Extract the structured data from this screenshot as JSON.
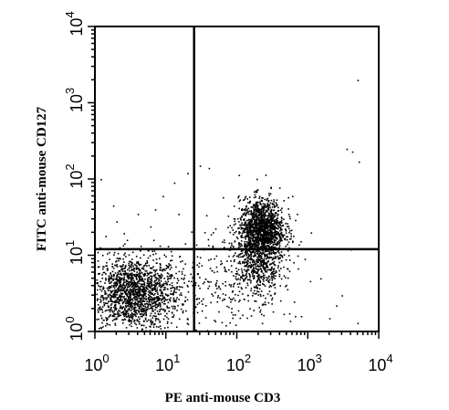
{
  "chart_data": {
    "type": "scatter",
    "xlabel": "PE anti-mouse CD3",
    "ylabel": "FITC anti-mouse CD127",
    "x_scale": "log",
    "y_scale": "log",
    "xlim": [
      1,
      10000
    ],
    "ylim": [
      1,
      10000
    ],
    "x_ticks": [
      {
        "value": 1,
        "base": "10",
        "exp": "0"
      },
      {
        "value": 10,
        "base": "10",
        "exp": "1"
      },
      {
        "value": 100,
        "base": "10",
        "exp": "2"
      },
      {
        "value": 1000,
        "base": "10",
        "exp": "3"
      },
      {
        "value": 10000,
        "base": "10",
        "exp": "4"
      }
    ],
    "y_ticks": [
      {
        "value": 1,
        "base": "10",
        "exp": "0"
      },
      {
        "value": 10,
        "base": "10",
        "exp": "1"
      },
      {
        "value": 100,
        "base": "10",
        "exp": "2"
      },
      {
        "value": 1000,
        "base": "10",
        "exp": "3"
      },
      {
        "value": 10000,
        "base": "10",
        "exp": "4"
      }
    ],
    "quadrant_gates": {
      "x": 25,
      "y": 12
    },
    "grid": false,
    "point_color": "#000000",
    "populations": [
      {
        "center_x": 3.5,
        "center_y": 3.2,
        "spread_x_decades": 0.32,
        "spread_y_decades": 0.24,
        "approx_events": 1700
      },
      {
        "center_x": 220,
        "center_y": 22,
        "spread_x_decades": 0.16,
        "spread_y_decades": 0.2,
        "approx_events": 1500
      },
      {
        "center_x": 200,
        "center_y": 7,
        "spread_x_decades": 0.17,
        "spread_y_decades": 0.2,
        "approx_events": 450
      },
      {
        "center_x": 80,
        "center_y": 5,
        "spread_x_decades": 0.4,
        "spread_y_decades": 0.35,
        "approx_events": 250
      }
    ],
    "sparse_points": [
      {
        "x": 3500,
        "y": 250
      },
      {
        "x": 4200,
        "y": 230
      },
      {
        "x": 5000,
        "y": 2000
      },
      {
        "x": 5200,
        "y": 170
      },
      {
        "x": 4000,
        "y": 12
      },
      {
        "x": 2000,
        "y": 1.5
      },
      {
        "x": 5000,
        "y": 1.3
      },
      {
        "x": 1.2,
        "y": 100
      },
      {
        "x": 1.5,
        "y": 2.2
      },
      {
        "x": 13,
        "y": 90
      },
      {
        "x": 20,
        "y": 120
      },
      {
        "x": 9,
        "y": 60
      },
      {
        "x": 30,
        "y": 150
      },
      {
        "x": 40,
        "y": 140
      },
      {
        "x": 2,
        "y": 28
      },
      {
        "x": 4,
        "y": 35
      },
      {
        "x": 6,
        "y": 24
      },
      {
        "x": 1.4,
        "y": 18
      },
      {
        "x": 2.8,
        "y": 16
      },
      {
        "x": 7,
        "y": 40
      },
      {
        "x": 15,
        "y": 35
      },
      {
        "x": 1.8,
        "y": 45
      },
      {
        "x": 3000,
        "y": 3
      },
      {
        "x": 1500,
        "y": 5
      },
      {
        "x": 800,
        "y": 1.6
      },
      {
        "x": 2500,
        "y": 2.2
      },
      {
        "x": 600,
        "y": 60
      },
      {
        "x": 700,
        "y": 35
      },
      {
        "x": 1100,
        "y": 20
      },
      {
        "x": 900,
        "y": 9
      }
    ]
  }
}
